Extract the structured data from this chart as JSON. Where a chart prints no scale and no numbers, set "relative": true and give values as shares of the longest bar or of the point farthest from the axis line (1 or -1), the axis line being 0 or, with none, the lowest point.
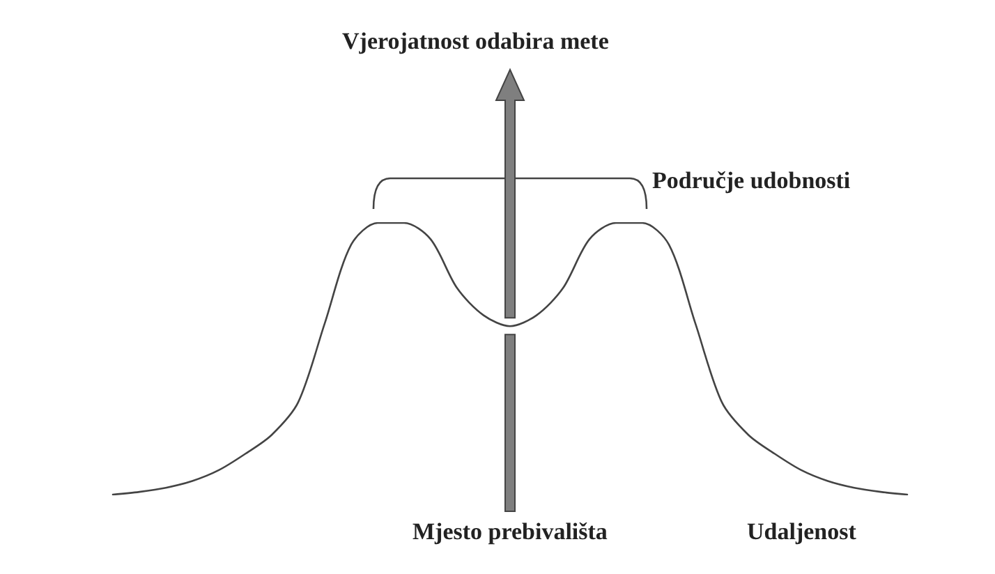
{
  "chart_data": {
    "type": "line",
    "relative": true,
    "xlabel": "Udaljenost",
    "annotations": [
      "Područje udobnosti",
      "Mjesto prebivališta",
      "Vjerojatnost odabira mete"
    ],
    "categories": [
      null,
      null,
      null,
      null,
      null,
      null,
      null,
      null,
      null,
      null,
      null,
      null,
      null,
      null,
      null,
      null,
      null,
      null,
      null,
      null,
      null,
      null,
      null,
      null,
      null,
      null,
      null,
      null,
      null,
      null,
      null
    ],
    "series": [
      {
        "color": "#444444",
        "values": [
          0,
          0.01,
          0.025,
          0.05,
          0.09,
          0.15,
          0.22,
          0.34,
          0.63,
          0.92,
          1,
          1,
          0.94,
          0.76,
          0.66,
          0.62,
          0.66,
          0.76,
          0.94,
          1,
          1,
          0.92,
          0.63,
          0.34,
          0.22,
          0.15,
          0.09,
          0.05,
          0.025,
          0.01,
          0
        ]
      }
    ],
    "marker": "none",
    "line_style": "solid",
    "grid": false
  }
}
